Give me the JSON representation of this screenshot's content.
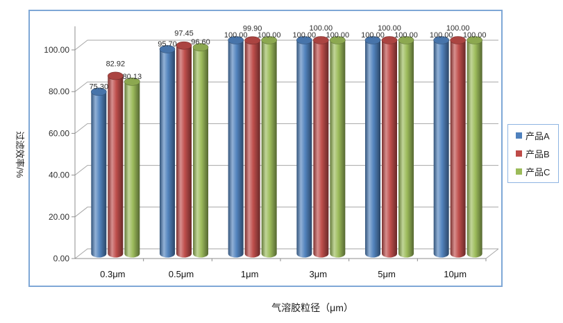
{
  "chart_data": {
    "type": "bar",
    "style": "3d-cylinder",
    "title": "",
    "xlabel": "气溶胶粒径（μm）",
    "ylabel": "过滤效率/%",
    "categories": [
      "0.3μm",
      "0.5μm",
      "1μm",
      "3μm",
      "5μm",
      "10μm"
    ],
    "series": [
      {
        "name": "产品A",
        "color": "#4F81BD",
        "values": [
          75.3,
          95.7,
          100.0,
          100.0,
          100.0,
          100.0
        ]
      },
      {
        "name": "产品B",
        "color": "#BE4B48",
        "values": [
          82.92,
          97.45,
          99.9,
          100.0,
          100.0,
          100.0
        ]
      },
      {
        "name": "产品C",
        "color": "#9BBB59",
        "values": [
          80.13,
          96.6,
          100.0,
          100.0,
          100.0,
          100.0
        ]
      }
    ],
    "data_labels_visible": true,
    "data_label_decimals": 2,
    "ylim": [
      0,
      100
    ],
    "ytick_step": 20,
    "ytick_labels": [
      "0.00",
      "20.00",
      "40.00",
      "60.00",
      "80.00",
      "100.00"
    ],
    "grid": true,
    "legend_position": "right"
  },
  "frame": {
    "chart_border_color": "#7EA7D6",
    "legend_border_color": "#8DB4E2",
    "grid_color": "#A6A6A6",
    "axis_color": "#8C8C8C",
    "text_color": "#2E2E2E",
    "label_color": "#2B2B2B"
  }
}
